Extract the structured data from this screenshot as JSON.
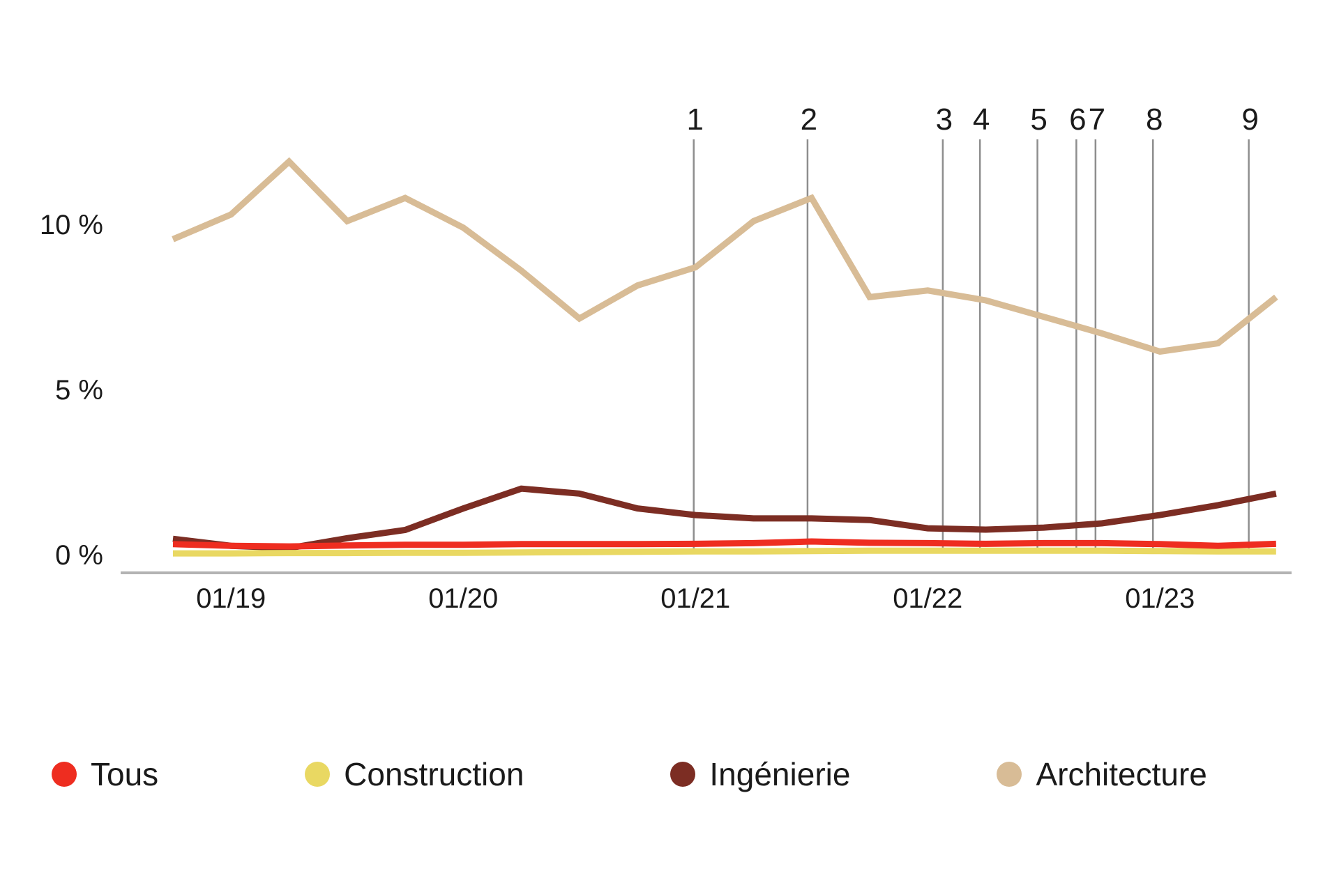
{
  "chart_data": {
    "type": "line",
    "title": "",
    "x_unit": "quarters since 2018-10",
    "categories": [
      "10/18",
      "01/19",
      "04/19",
      "07/19",
      "10/19",
      "01/20",
      "04/20",
      "07/20",
      "10/20",
      "01/21",
      "04/21",
      "07/21",
      "10/21",
      "01/22",
      "04/22",
      "07/22",
      "10/22",
      "01/23",
      "04/23",
      "07/23"
    ],
    "series": [
      {
        "name": "Tous",
        "color": "#ee2d20",
        "values": [
          0.32,
          0.27,
          0.25,
          0.28,
          0.3,
          0.3,
          0.32,
          0.32,
          0.32,
          0.33,
          0.35,
          0.4,
          0.36,
          0.35,
          0.33,
          0.35,
          0.35,
          0.32,
          0.27,
          0.33
        ]
      },
      {
        "name": "Construction",
        "color": "#e9d862",
        "values": [
          0.04,
          0.04,
          0.05,
          0.05,
          0.06,
          0.06,
          0.07,
          0.08,
          0.09,
          0.1,
          0.1,
          0.11,
          0.12,
          0.12,
          0.12,
          0.12,
          0.12,
          0.11,
          0.1,
          0.1
        ]
      },
      {
        "name": "Ingénierie",
        "color": "#7c2d23",
        "values": [
          0.48,
          0.27,
          0.2,
          0.5,
          0.75,
          1.4,
          2.0,
          1.85,
          1.4,
          1.2,
          1.1,
          1.1,
          1.05,
          0.8,
          0.76,
          0.82,
          0.95,
          1.2,
          1.5,
          1.85
        ]
      },
      {
        "name": "Architecture",
        "color": "#d8bc96",
        "values": [
          9.55,
          10.3,
          11.9,
          10.1,
          10.8,
          9.9,
          8.6,
          7.15,
          8.15,
          8.7,
          10.1,
          10.8,
          7.8,
          8.0,
          7.7,
          7.2,
          6.7,
          6.15,
          6.4,
          7.8
        ]
      }
    ],
    "y_ticks": [
      {
        "value": 0,
        "label": "0 %"
      },
      {
        "value": 5,
        "label": "5 %"
      },
      {
        "value": 10,
        "label": "10 %"
      }
    ],
    "x_ticks": [
      {
        "t": 1,
        "label": "01/19"
      },
      {
        "t": 5,
        "label": "01/20"
      },
      {
        "t": 9,
        "label": "01/21"
      },
      {
        "t": 13,
        "label": "01/22"
      },
      {
        "t": 17,
        "label": "01/23"
      }
    ],
    "annotations": [
      {
        "label": "1",
        "t": 8.97
      },
      {
        "label": "2",
        "t": 10.93
      },
      {
        "label": "3",
        "t": 13.26
      },
      {
        "label": "4",
        "t": 13.9
      },
      {
        "label": "5",
        "t": 14.89
      },
      {
        "label": "6",
        "t": 15.56
      },
      {
        "label": "7",
        "t": 15.89
      },
      {
        "label": "8",
        "t": 16.88
      },
      {
        "label": "9",
        "t": 18.53
      },
      {
        "label_color": "#1a1a1a",
        "line_color": "#8e8e8e"
      }
    ],
    "ylim": [
      0,
      13.5
    ],
    "grid": "baseline-only",
    "baseline_color": "#b3b3b3",
    "legend_position": "bottom"
  },
  "legend": {
    "items": [
      {
        "label": "Tous"
      },
      {
        "label": "Construction"
      },
      {
        "label": "Ingénierie"
      },
      {
        "label": "Architecture"
      }
    ]
  }
}
